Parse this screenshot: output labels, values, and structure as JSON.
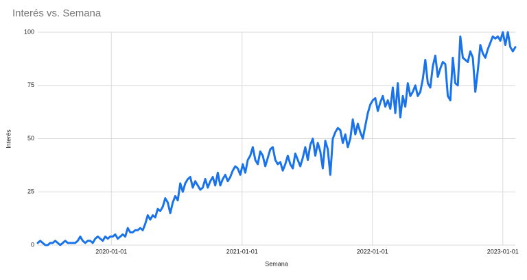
{
  "chart_data": {
    "type": "line",
    "title": "Interés vs. Semana",
    "x_label": "Semana",
    "y_label": "Interés",
    "color": "#1a73e8",
    "grid": true,
    "ylim": [
      0,
      100
    ],
    "yticks": [
      0,
      25,
      50,
      75,
      100
    ],
    "xlim": [
      "2019-06-09",
      "2023-02-05"
    ],
    "xticks": [
      "2020-01-01",
      "2021-01-01",
      "2022-01-01",
      "2023-01-01"
    ],
    "x": [
      "2019-06-09",
      "2019-06-16",
      "2019-06-23",
      "2019-06-30",
      "2019-07-07",
      "2019-07-14",
      "2019-07-21",
      "2019-07-28",
      "2019-08-04",
      "2019-08-11",
      "2019-08-18",
      "2019-08-25",
      "2019-09-01",
      "2019-09-08",
      "2019-09-15",
      "2019-09-22",
      "2019-09-29",
      "2019-10-06",
      "2019-10-13",
      "2019-10-20",
      "2019-10-27",
      "2019-11-03",
      "2019-11-10",
      "2019-11-17",
      "2019-11-24",
      "2019-12-01",
      "2019-12-08",
      "2019-12-15",
      "2019-12-22",
      "2019-12-29",
      "2020-01-05",
      "2020-01-12",
      "2020-01-19",
      "2020-01-26",
      "2020-02-02",
      "2020-02-09",
      "2020-02-16",
      "2020-02-23",
      "2020-03-01",
      "2020-03-08",
      "2020-03-15",
      "2020-03-22",
      "2020-03-29",
      "2020-04-05",
      "2020-04-12",
      "2020-04-19",
      "2020-04-26",
      "2020-05-03",
      "2020-05-10",
      "2020-05-17",
      "2020-05-24",
      "2020-05-31",
      "2020-06-07",
      "2020-06-14",
      "2020-06-21",
      "2020-06-28",
      "2020-07-05",
      "2020-07-12",
      "2020-07-19",
      "2020-07-26",
      "2020-08-02",
      "2020-08-09",
      "2020-08-16",
      "2020-08-23",
      "2020-08-30",
      "2020-09-06",
      "2020-09-13",
      "2020-09-20",
      "2020-09-27",
      "2020-10-04",
      "2020-10-11",
      "2020-10-18",
      "2020-10-25",
      "2020-11-01",
      "2020-11-08",
      "2020-11-15",
      "2020-11-22",
      "2020-11-29",
      "2020-12-06",
      "2020-12-13",
      "2020-12-20",
      "2020-12-27",
      "2021-01-03",
      "2021-01-10",
      "2021-01-17",
      "2021-01-24",
      "2021-01-31",
      "2021-02-07",
      "2021-02-14",
      "2021-02-21",
      "2021-02-28",
      "2021-03-07",
      "2021-03-14",
      "2021-03-21",
      "2021-03-28",
      "2021-04-04",
      "2021-04-11",
      "2021-04-18",
      "2021-04-25",
      "2021-05-02",
      "2021-05-09",
      "2021-05-16",
      "2021-05-23",
      "2021-05-30",
      "2021-06-06",
      "2021-06-13",
      "2021-06-20",
      "2021-06-27",
      "2021-07-04",
      "2021-07-11",
      "2021-07-18",
      "2021-07-25",
      "2021-08-01",
      "2021-08-08",
      "2021-08-15",
      "2021-08-22",
      "2021-08-29",
      "2021-09-05",
      "2021-09-12",
      "2021-09-19",
      "2021-09-26",
      "2021-10-03",
      "2021-10-10",
      "2021-10-17",
      "2021-10-24",
      "2021-10-31",
      "2021-11-07",
      "2021-11-14",
      "2021-11-21",
      "2021-11-28",
      "2021-12-05",
      "2021-12-12",
      "2021-12-19",
      "2021-12-26",
      "2022-01-02",
      "2022-01-09",
      "2022-01-16",
      "2022-01-23",
      "2022-01-30",
      "2022-02-06",
      "2022-02-13",
      "2022-02-20",
      "2022-02-27",
      "2022-03-06",
      "2022-03-13",
      "2022-03-20",
      "2022-03-27",
      "2022-04-03",
      "2022-04-10",
      "2022-04-17",
      "2022-04-24",
      "2022-05-01",
      "2022-05-08",
      "2022-05-15",
      "2022-05-22",
      "2022-05-29",
      "2022-06-05",
      "2022-06-12",
      "2022-06-19",
      "2022-06-26",
      "2022-07-03",
      "2022-07-10",
      "2022-07-17",
      "2022-07-24",
      "2022-07-31",
      "2022-08-07",
      "2022-08-14",
      "2022-08-21",
      "2022-08-28",
      "2022-09-04",
      "2022-09-11",
      "2022-09-18",
      "2022-09-25",
      "2022-10-02",
      "2022-10-09",
      "2022-10-16",
      "2022-10-23",
      "2022-10-30",
      "2022-11-06",
      "2022-11-13",
      "2022-11-20",
      "2022-11-27",
      "2022-12-04",
      "2022-12-11",
      "2022-12-18",
      "2022-12-25",
      "2023-01-01",
      "2023-01-08",
      "2023-01-15",
      "2023-01-22",
      "2023-01-29",
      "2023-02-05"
    ],
    "values": [
      1,
      2,
      1,
      0,
      0,
      1,
      1,
      2,
      1,
      0,
      1,
      2,
      1,
      1,
      1,
      1,
      2,
      4,
      2,
      1,
      2,
      2,
      1,
      3,
      4,
      3,
      2,
      4,
      3,
      4,
      4,
      5,
      3,
      4,
      5,
      4,
      8,
      6,
      6,
      7,
      7,
      8,
      7,
      10,
      14,
      12,
      14,
      13,
      17,
      16,
      18,
      22,
      20,
      15,
      20,
      23,
      21,
      29,
      25,
      29,
      31,
      32,
      27,
      30,
      28,
      26,
      27,
      31,
      27,
      30,
      32,
      28,
      34,
      28,
      31,
      33,
      30,
      32,
      35,
      37,
      36,
      33,
      38,
      34,
      40,
      42,
      46,
      40,
      38,
      44,
      42,
      37,
      41,
      45,
      46,
      40,
      38,
      39,
      35,
      38,
      42,
      38,
      36,
      43,
      40,
      37,
      41,
      46,
      40,
      47,
      50,
      42,
      48,
      44,
      36,
      49,
      45,
      33,
      50,
      53,
      55,
      54,
      48,
      52,
      46,
      50,
      59,
      52,
      57,
      53,
      50,
      56,
      62,
      66,
      68,
      69,
      63,
      67,
      70,
      65,
      68,
      64,
      74,
      62,
      76,
      60,
      70,
      65,
      76,
      70,
      72,
      75,
      70,
      72,
      78,
      87,
      76,
      74,
      84,
      89,
      79,
      83,
      86,
      85,
      70,
      68,
      88,
      76,
      75,
      98,
      88,
      87,
      86,
      91,
      88,
      72,
      82,
      94,
      90,
      88,
      92,
      95,
      98,
      97,
      98,
      96,
      100,
      94,
      100,
      93,
      91,
      93
    ]
  }
}
